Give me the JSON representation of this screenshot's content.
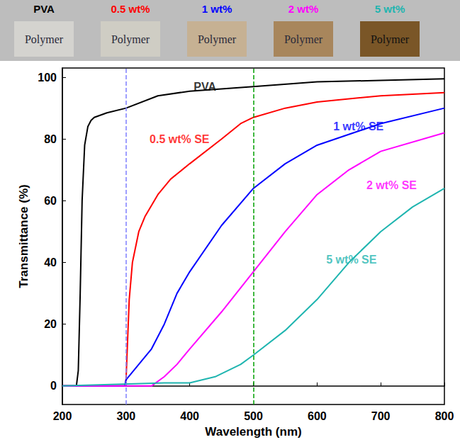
{
  "chart_data": {
    "type": "line",
    "x_label": "Wavelength (nm)",
    "y_label": "Transmittance (%)",
    "xlim": [
      200,
      800
    ],
    "xticks": [
      200,
      300,
      400,
      500,
      600,
      700,
      800
    ],
    "ylim": [
      -6,
      103
    ],
    "yticks": [
      0,
      20,
      40,
      60,
      80,
      100
    ],
    "grid": false,
    "samples": [
      {
        "label": "PVA",
        "color": "#000000",
        "text": "Polymer",
        "fill": "#d4d3cf"
      },
      {
        "label": "0.5 wt%",
        "color": "#ff0000",
        "text": "Polymer",
        "fill": "#cfcdc4"
      },
      {
        "label": "1 wt%",
        "color": "#0000ff",
        "text": "Polymer",
        "fill": "#c6b193"
      },
      {
        "label": "2 wt%",
        "color": "#ff00ff",
        "text": "Polymer",
        "fill": "#a8865c"
      },
      {
        "label": "5 wt%",
        "color": "#1fb5b0",
        "text": "Polymer",
        "fill": "#7a5627"
      }
    ],
    "vlines": [
      {
        "x": 300,
        "color": "#7f7fff",
        "line_style": "dashed"
      },
      {
        "x": 500,
        "color": "#00a000",
        "line_style": "dashed"
      }
    ],
    "series": [
      {
        "name": "PVA",
        "color": "#000000",
        "label_x": 424,
        "label_y": 97,
        "x": [
          200,
          222,
          225,
          228,
          231,
          235,
          240,
          245,
          250,
          270,
          300,
          350,
          400,
          500,
          600,
          700,
          800
        ],
        "values": [
          0,
          0,
          5,
          30,
          60,
          78,
          84,
          86,
          87,
          88.5,
          90,
          94,
          95.5,
          97,
          98.5,
          99,
          99.5
        ]
      },
      {
        "name": "0.5 wt% SE",
        "color": "#ff0000",
        "label_x": 384,
        "label_y": 80,
        "x": [
          200,
          298,
          300,
          305,
          310,
          320,
          330,
          350,
          370,
          400,
          450,
          480,
          500,
          550,
          600,
          700,
          800
        ],
        "values": [
          0,
          0,
          2,
          28,
          40,
          50,
          55,
          62,
          67,
          72,
          80,
          85,
          87,
          90,
          92,
          94,
          95
        ]
      },
      {
        "name": "1 wt% SE",
        "color": "#0000ff",
        "label_x": 665,
        "label_y": 84,
        "x": [
          200,
          298,
          300,
          320,
          340,
          360,
          380,
          400,
          450,
          500,
          550,
          600,
          700,
          800
        ],
        "values": [
          0,
          0,
          2,
          7,
          12,
          20,
          30,
          37,
          52,
          64,
          72,
          78,
          85,
          90
        ]
      },
      {
        "name": "2 wt% SE",
        "color": "#ff00ff",
        "label_x": 717,
        "label_y": 65,
        "x": [
          200,
          340,
          360,
          380,
          400,
          450,
          500,
          550,
          600,
          650,
          700,
          800
        ],
        "values": [
          0,
          0,
          3,
          7,
          12,
          24,
          37,
          50,
          62,
          70,
          76,
          82
        ]
      },
      {
        "name": "5 wt% SE",
        "color": "#1fb5b0",
        "label_x": 654,
        "label_y": 41,
        "x": [
          200,
          360,
          400,
          440,
          480,
          500,
          550,
          600,
          650,
          700,
          750,
          800
        ],
        "values": [
          0,
          1,
          1,
          3,
          7,
          10,
          18,
          28,
          40,
          50,
          58,
          64
        ]
      }
    ]
  }
}
